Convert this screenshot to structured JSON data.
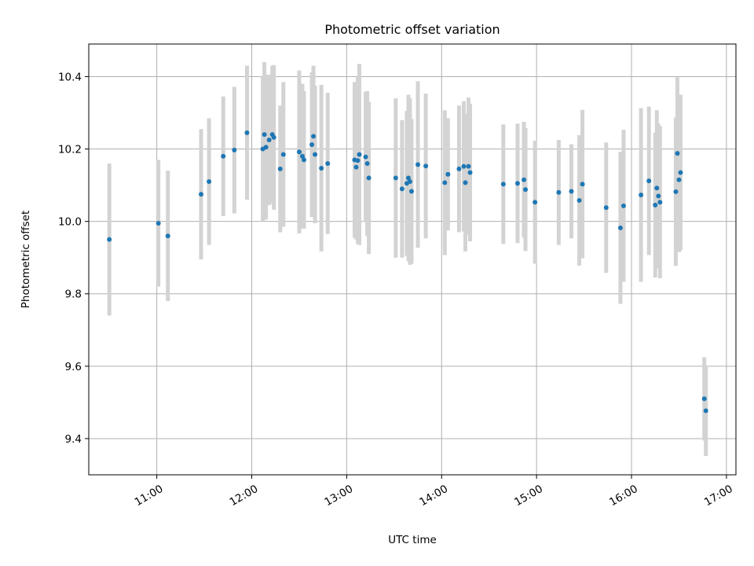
{
  "chart_data": {
    "type": "scatter",
    "title": "Photometric offset variation",
    "xlabel": "UTC time",
    "ylabel": "Photometric offset",
    "xlim": [
      "10:17",
      "17:06"
    ],
    "ylim": [
      9.3,
      10.49
    ],
    "x_ticks": [
      "11:00",
      "12:00",
      "13:00",
      "14:00",
      "15:00",
      "16:00",
      "17:00"
    ],
    "y_ticks": [
      "9.4",
      "9.6",
      "9.8",
      "10.0",
      "10.2",
      "10.4"
    ],
    "grid": true,
    "colors": {
      "point": "#1f77b4",
      "error_bar": "#d3d3d3"
    },
    "series": [
      {
        "points": [
          {
            "x": "10:30",
            "y": 9.95,
            "err": 0.21
          },
          {
            "x": "11:01",
            "y": 9.995,
            "err": 0.175
          },
          {
            "x": "11:07",
            "y": 9.96,
            "err": 0.18
          },
          {
            "x": "11:28",
            "y": 10.075,
            "err": 0.18
          },
          {
            "x": "11:33",
            "y": 10.11,
            "err": 0.175
          },
          {
            "x": "11:42",
            "y": 10.18,
            "err": 0.165
          },
          {
            "x": "11:49",
            "y": 10.197,
            "err": 0.175
          },
          {
            "x": "11:57",
            "y": 10.245,
            "err": 0.185
          },
          {
            "x": "12:07",
            "y": 10.2,
            "err": 0.2
          },
          {
            "x": "12:08",
            "y": 10.24,
            "err": 0.2
          },
          {
            "x": "12:09",
            "y": 10.205,
            "err": 0.2
          },
          {
            "x": "12:11",
            "y": 10.225,
            "err": 0.18
          },
          {
            "x": "12:13",
            "y": 10.24,
            "err": 0.19
          },
          {
            "x": "12:14",
            "y": 10.232,
            "err": 0.2
          },
          {
            "x": "12:18",
            "y": 10.145,
            "err": 0.175
          },
          {
            "x": "12:20",
            "y": 10.185,
            "err": 0.2
          },
          {
            "x": "12:30",
            "y": 10.192,
            "err": 0.225
          },
          {
            "x": "12:32",
            "y": 10.18,
            "err": 0.2
          },
          {
            "x": "12:33",
            "y": 10.17,
            "err": 0.19
          },
          {
            "x": "12:38",
            "y": 10.212,
            "err": 0.2
          },
          {
            "x": "12:39",
            "y": 10.235,
            "err": 0.195
          },
          {
            "x": "12:40",
            "y": 10.185,
            "err": 0.19
          },
          {
            "x": "12:44",
            "y": 10.147,
            "err": 0.23
          },
          {
            "x": "12:48",
            "y": 10.16,
            "err": 0.195
          },
          {
            "x": "13:05",
            "y": 10.17,
            "err": 0.215
          },
          {
            "x": "13:06",
            "y": 10.15,
            "err": 0.2
          },
          {
            "x": "13:07",
            "y": 10.168,
            "err": 0.23
          },
          {
            "x": "13:08",
            "y": 10.185,
            "err": 0.25
          },
          {
            "x": "13:12",
            "y": 10.178,
            "err": 0.18
          },
          {
            "x": "13:13",
            "y": 10.16,
            "err": 0.2
          },
          {
            "x": "13:14",
            "y": 10.12,
            "err": 0.21
          },
          {
            "x": "13:31",
            "y": 10.12,
            "err": 0.22
          },
          {
            "x": "13:35",
            "y": 10.09,
            "err": 0.19
          },
          {
            "x": "13:38",
            "y": 10.105,
            "err": 0.2
          },
          {
            "x": "13:39",
            "y": 10.12,
            "err": 0.23
          },
          {
            "x": "13:40",
            "y": 10.11,
            "err": 0.23
          },
          {
            "x": "13:41",
            "y": 10.083,
            "err": 0.2
          },
          {
            "x": "13:45",
            "y": 10.157,
            "err": 0.23
          },
          {
            "x": "13:50",
            "y": 10.153,
            "err": 0.2
          },
          {
            "x": "14:02",
            "y": 10.107,
            "err": 0.2
          },
          {
            "x": "14:04",
            "y": 10.13,
            "err": 0.155
          },
          {
            "x": "14:11",
            "y": 10.145,
            "err": 0.175
          },
          {
            "x": "14:14",
            "y": 10.152,
            "err": 0.18
          },
          {
            "x": "14:15",
            "y": 10.107,
            "err": 0.19
          },
          {
            "x": "14:17",
            "y": 10.152,
            "err": 0.19
          },
          {
            "x": "14:18",
            "y": 10.135,
            "err": 0.19
          },
          {
            "x": "14:39",
            "y": 10.103,
            "err": 0.165
          },
          {
            "x": "14:48",
            "y": 10.105,
            "err": 0.165
          },
          {
            "x": "14:52",
            "y": 10.115,
            "err": 0.16
          },
          {
            "x": "14:53",
            "y": 10.088,
            "err": 0.17
          },
          {
            "x": "14:59",
            "y": 10.053,
            "err": 0.17
          },
          {
            "x": "15:14",
            "y": 10.08,
            "err": 0.145
          },
          {
            "x": "15:22",
            "y": 10.083,
            "err": 0.13
          },
          {
            "x": "15:27",
            "y": 10.058,
            "err": 0.18
          },
          {
            "x": "15:29",
            "y": 10.103,
            "err": 0.205
          },
          {
            "x": "15:44",
            "y": 10.038,
            "err": 0.18
          },
          {
            "x": "15:53",
            "y": 9.982,
            "err": 0.21
          },
          {
            "x": "15:55",
            "y": 10.043,
            "err": 0.21
          },
          {
            "x": "16:06",
            "y": 10.073,
            "err": 0.24
          },
          {
            "x": "16:11",
            "y": 10.112,
            "err": 0.205
          },
          {
            "x": "16:15",
            "y": 10.045,
            "err": 0.2
          },
          {
            "x": "16:16",
            "y": 10.092,
            "err": 0.215
          },
          {
            "x": "16:17",
            "y": 10.07,
            "err": 0.2
          },
          {
            "x": "16:18",
            "y": 10.053,
            "err": 0.21
          },
          {
            "x": "16:28",
            "y": 10.082,
            "err": 0.205
          },
          {
            "x": "16:29",
            "y": 10.188,
            "err": 0.21
          },
          {
            "x": "16:30",
            "y": 10.115,
            "err": 0.2
          },
          {
            "x": "16:31",
            "y": 10.135,
            "err": 0.215
          },
          {
            "x": "16:46",
            "y": 9.51,
            "err": 0.115
          },
          {
            "x": "16:47",
            "y": 9.477,
            "err": 0.125
          }
        ]
      }
    ]
  }
}
